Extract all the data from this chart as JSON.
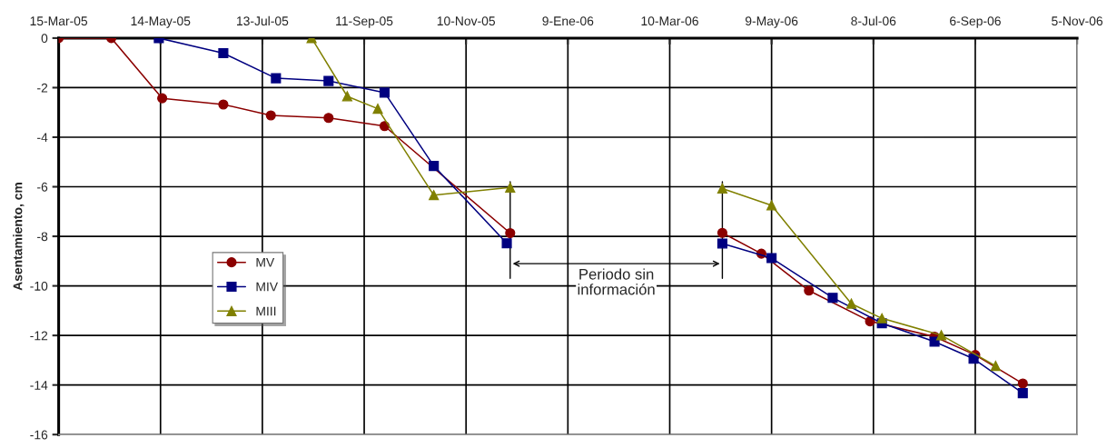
{
  "chart_data": {
    "type": "line",
    "ylabel": "Asentamiento, cm",
    "series": [
      {
        "name": "MV",
        "color": "#8b0000",
        "marker": "circle",
        "x": [
          "2005-03-15",
          "2005-04-15",
          "2005-05-15",
          "2005-06-20",
          "2005-07-18",
          "2005-08-21",
          "2005-09-23",
          "2005-12-06",
          "2006-02-01",
          "2006-04-10",
          "2006-05-03",
          "2006-05-31",
          "2006-07-06",
          "2006-08-13",
          "2006-09-06",
          "2006-10-04"
        ],
        "values": [
          0,
          0,
          -2.43,
          -2.68,
          -3.12,
          -3.22,
          -3.55,
          -7.87,
          null,
          -7.86,
          -8.7,
          -10.19,
          -11.43,
          -12.05,
          -12.79,
          -13.94
        ]
      },
      {
        "name": "MIV",
        "color": "#000080",
        "marker": "square",
        "x": [
          "2005-05-13",
          "2005-06-20",
          "2005-07-21",
          "2005-08-21",
          "2005-09-23",
          "2005-10-22",
          "2005-12-04",
          "2006-02-01",
          "2006-04-10",
          "2006-05-09",
          "2006-06-14",
          "2006-07-13",
          "2006-08-13",
          "2006-09-05",
          "2006-10-04"
        ],
        "values": [
          0,
          -0.61,
          -1.62,
          -1.73,
          -2.2,
          -5.16,
          -8.28,
          null,
          -8.29,
          -8.88,
          -10.48,
          -11.51,
          -12.25,
          -12.94,
          -14.33
        ]
      },
      {
        "name": "MIII",
        "color": "#808000",
        "marker": "triangle",
        "x": [
          "2005-08-11",
          "2005-09-01",
          "2005-09-19",
          "2005-10-22",
          "2005-12-06",
          "2006-02-01",
          "2006-04-10",
          "2006-05-09",
          "2006-06-25",
          "2006-07-13",
          "2006-08-17",
          "2006-09-18"
        ],
        "values": [
          0,
          -2.35,
          -2.85,
          -6.34,
          -6.03,
          null,
          -6.07,
          -6.75,
          -10.72,
          -11.31,
          -11.99,
          -13.23
        ]
      }
    ],
    "xlim": [
      "2005-03-15",
      "2006-11-05"
    ],
    "xticks": [
      {
        "value": "2005-03-15",
        "label": "15-Mar-05"
      },
      {
        "value": "2005-05-14",
        "label": "14-May-05"
      },
      {
        "value": "2005-07-13",
        "label": "13-Jul-05"
      },
      {
        "value": "2005-09-11",
        "label": "11-Sep-05"
      },
      {
        "value": "2005-11-10",
        "label": "10-Nov-05"
      },
      {
        "value": "2006-01-09",
        "label": "9-Ene-06"
      },
      {
        "value": "2006-03-10",
        "label": "10-Mar-06"
      },
      {
        "value": "2006-05-09",
        "label": "9-May-06"
      },
      {
        "value": "2006-07-08",
        "label": "8-Jul-06"
      },
      {
        "value": "2006-09-06",
        "label": "6-Sep-06"
      },
      {
        "value": "2006-11-05",
        "label": "5-Nov-06"
      }
    ],
    "ylim": [
      -16,
      0
    ],
    "yticks": [
      -16,
      -14,
      -12,
      -10,
      -8,
      -6,
      -4,
      -2,
      0
    ],
    "grid": true,
    "legend": "left",
    "line_style": "solid",
    "annotations": [
      "Periodo sin\ninformación"
    ]
  }
}
